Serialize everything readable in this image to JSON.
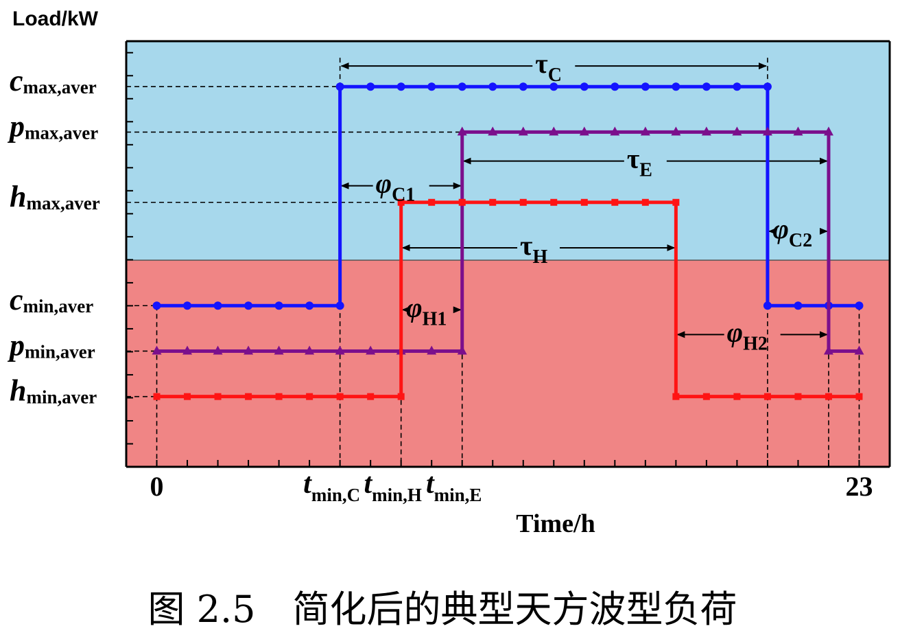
{
  "chart_data": {
    "type": "line",
    "ylabel": "Load/kW",
    "xlabel": "Time/h",
    "caption": "图 2.5　简化后的典型天方波型负荷",
    "x_ticks": [
      {
        "x": 0,
        "label": "0"
      },
      {
        "x": 6,
        "label_main": "t",
        "label_sub": "min,C"
      },
      {
        "x": 8,
        "label_main": "t",
        "label_sub": "min,H"
      },
      {
        "x": 10,
        "label_main": "t",
        "label_sub": "min,E"
      },
      {
        "x": 23,
        "label": "23"
      }
    ],
    "y_levels": [
      {
        "key": "c_max",
        "main": "c",
        "sub": "max,aver",
        "value": 0.92
      },
      {
        "key": "p_max",
        "main": "p",
        "sub": "max,aver",
        "value": 0.81
      },
      {
        "key": "h_max",
        "main": "h",
        "sub": "max,aver",
        "value": 0.64
      },
      {
        "key": "c_min",
        "main": "c",
        "sub": "min,aver",
        "value": 0.39
      },
      {
        "key": "p_min",
        "main": "p",
        "sub": "min,aver",
        "value": 0.28
      },
      {
        "key": "h_min",
        "main": "h",
        "sub": "min,aver",
        "value": 0.17
      }
    ],
    "xlim": [
      -1,
      24
    ],
    "ylim": [
      0,
      1.03
    ],
    "regions": [
      {
        "from": 0.5,
        "to": 1.03,
        "color": "#a7d8ec"
      },
      {
        "from": 0,
        "to": 0.5,
        "color": "#f08585"
      }
    ],
    "series": [
      {
        "key": "c",
        "color": "#1414ff",
        "marker": "circle",
        "steps": [
          [
            0,
            6,
            0.39
          ],
          [
            6,
            20,
            0.92
          ],
          [
            20,
            23,
            0.39
          ]
        ]
      },
      {
        "key": "p",
        "color": "#7b0f8c",
        "marker": "triangle",
        "steps": [
          [
            0,
            10,
            0.28
          ],
          [
            10,
            22,
            0.81
          ],
          [
            22,
            23,
            0.28
          ]
        ]
      },
      {
        "key": "h",
        "color": "#ff1414",
        "marker": "square",
        "steps": [
          [
            0,
            8,
            0.17
          ],
          [
            8,
            17,
            0.64
          ],
          [
            17,
            23,
            0.17
          ]
        ]
      }
    ],
    "annotations": [
      {
        "main": "τ",
        "sub": "C",
        "x1": 6,
        "x2": 20,
        "y": 0.97
      },
      {
        "main": "τ",
        "sub": "E",
        "x1": 10,
        "x2": 22,
        "y": 0.74
      },
      {
        "main": "τ",
        "sub": "H",
        "x1": 8,
        "x2": 17,
        "y": 0.53
      },
      {
        "main": "φ",
        "sub": "C1",
        "x1": 6,
        "x2": 10,
        "y": 0.68
      },
      {
        "main": "φ",
        "sub": "C2",
        "x1": 20,
        "x2": 22,
        "y": 0.57
      },
      {
        "main": "φ",
        "sub": "H1",
        "x1": 8,
        "x2": 10,
        "y": 0.38
      },
      {
        "main": "φ",
        "sub": "H2",
        "x1": 17,
        "x2": 22,
        "y": 0.32
      }
    ]
  }
}
